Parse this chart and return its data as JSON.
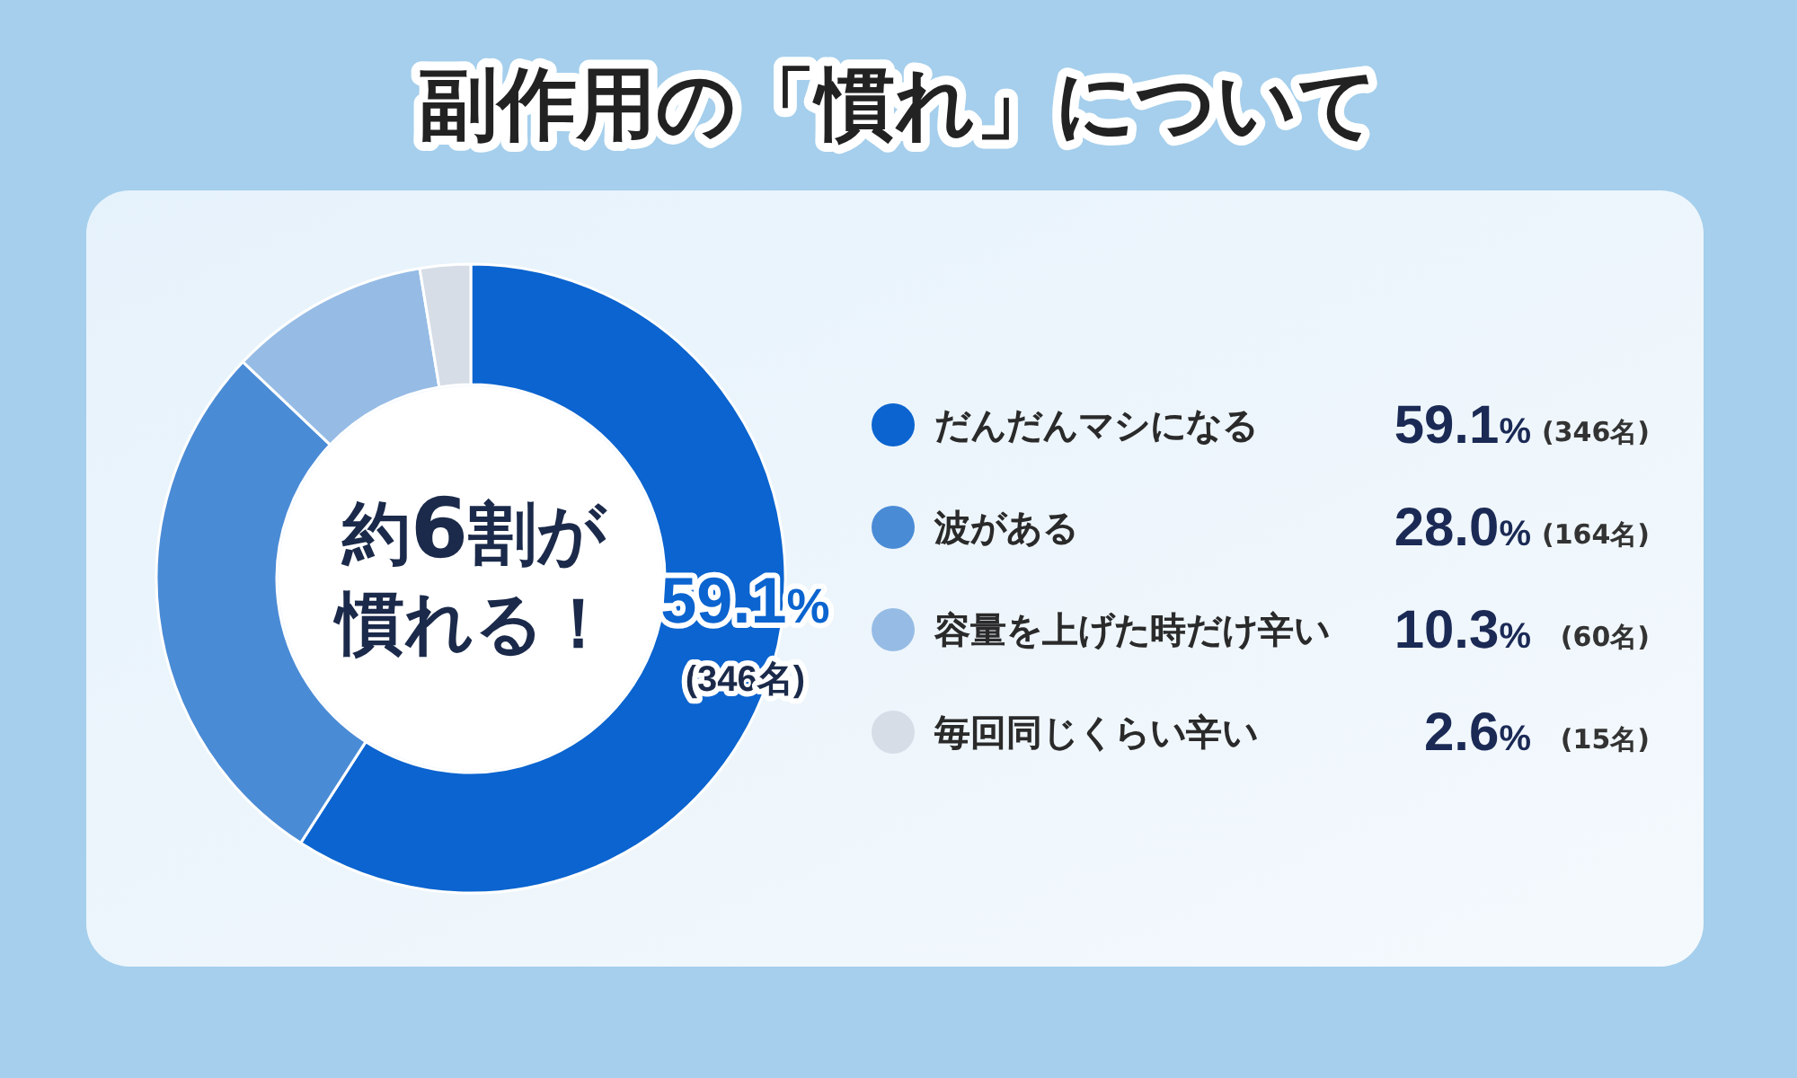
{
  "chart_data": {
    "type": "donut",
    "title": "副作用の「慣れ」について",
    "categories": [
      "だんだんマシになる",
      "波がある",
      "容量を上げた時だけ辛い",
      "毎回同じくらい辛い"
    ],
    "values": [
      59.1,
      28.0,
      10.3,
      2.6
    ],
    "colors": [
      "#0b64cf",
      "#4a8bd6",
      "#96bce5",
      "#d6dde7"
    ],
    "value_labels": [
      "59.1% (346名)",
      "28.0% (164名)",
      "10.3% (60名)",
      "2.6% (15名)"
    ],
    "annotations": [
      "約6割が",
      "慣れる！",
      {
        "text": "59.1%\n(346名)",
        "x": "だんだんマシになる"
      }
    ],
    "legend": "right"
  }
}
